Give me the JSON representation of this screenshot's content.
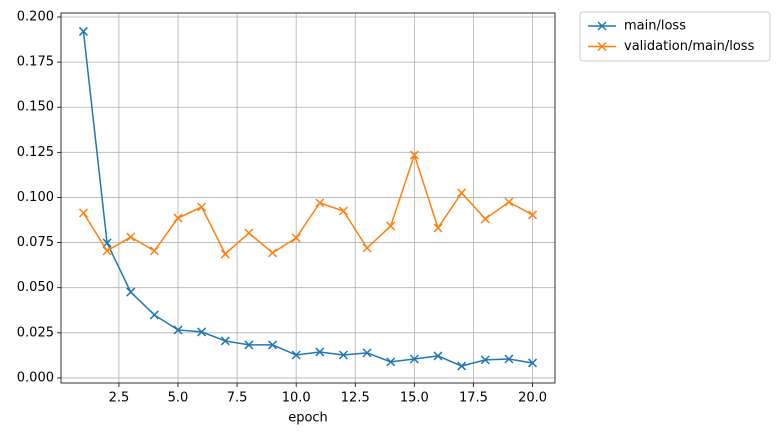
{
  "chart_data": {
    "type": "line",
    "x_label": "epoch",
    "x": [
      1,
      2,
      3,
      4,
      5,
      6,
      7,
      8,
      9,
      10,
      11,
      12,
      13,
      14,
      15,
      16,
      17,
      18,
      19,
      20
    ],
    "series": [
      {
        "name": "main/loss",
        "color": "#1f77b4",
        "marker": "x",
        "values": [
          0.192,
          0.0748,
          0.0476,
          0.0349,
          0.0266,
          0.0255,
          0.0205,
          0.0183,
          0.0183,
          0.0127,
          0.0144,
          0.0127,
          0.0139,
          0.0089,
          0.0105,
          0.0122,
          0.0066,
          0.01,
          0.0105,
          0.0083
        ]
      },
      {
        "name": "validation/main/loss",
        "color": "#ff7f0e",
        "marker": "x",
        "values": [
          0.0914,
          0.0704,
          0.0781,
          0.0704,
          0.0886,
          0.0947,
          0.0687,
          0.0803,
          0.0693,
          0.0776,
          0.097,
          0.0925,
          0.072,
          0.0842,
          0.1235,
          0.0831,
          0.1025,
          0.0881,
          0.0975,
          0.0903
        ]
      }
    ],
    "xlim": [
      0.05,
      20.95
    ],
    "ylim": [
      -0.0028,
      0.2022
    ],
    "xticks": [
      2.5,
      {
        "value": 5,
        "label": "5.0"
      },
      7.5,
      {
        "value": 10,
        "label": "10.0"
      },
      12.5,
      {
        "value": 15,
        "label": "15.0"
      },
      17.5,
      {
        "value": 20,
        "label": "20.0"
      }
    ],
    "yticks": [
      {
        "value": 0,
        "label": "0.000"
      },
      {
        "value": 0.025,
        "label": "0.025"
      },
      {
        "value": 0.05,
        "label": "0.050"
      },
      {
        "value": 0.075,
        "label": "0.075"
      },
      {
        "value": 0.1,
        "label": "0.100"
      },
      {
        "value": 0.125,
        "label": "0.125"
      },
      {
        "value": 0.15,
        "label": "0.150"
      },
      {
        "value": 0.175,
        "label": "0.175"
      },
      {
        "value": 0.2,
        "label": "0.200"
      }
    ],
    "grid": true,
    "legend": "outside-upper-right"
  }
}
